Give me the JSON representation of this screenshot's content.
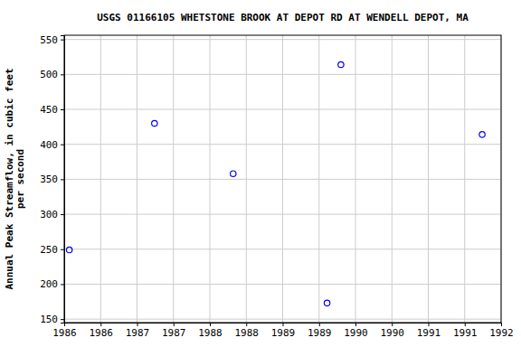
{
  "chart_data": {
    "type": "scatter",
    "title": "USGS 01166105 WHETSTONE BROOK AT DEPOT RD AT WENDELL DEPOT, MA",
    "y_label": [
      "Annual Peak Streamflow, in cubic feet",
      "per second"
    ],
    "x": [
      1986.07,
      1987.24,
      1988.32,
      1989.61,
      1989.8,
      1991.74
    ],
    "values": [
      249,
      430,
      358,
      173,
      514,
      414
    ],
    "color": "#0000ee",
    "marker": "circle-open",
    "xlim": [
      1986,
      1992
    ],
    "xticks": [
      {
        "value": 1986,
        "label": "1986"
      },
      {
        "value": 1986.5,
        "label": "1986"
      },
      {
        "value": 1987,
        "label": "1987"
      },
      {
        "value": 1987.5,
        "label": "1987"
      },
      {
        "value": 1988,
        "label": "1988"
      },
      {
        "value": 1988.5,
        "label": "1988"
      },
      {
        "value": 1989,
        "label": "1989"
      },
      {
        "value": 1989.5,
        "label": "1989"
      },
      {
        "value": 1990,
        "label": "1990"
      },
      {
        "value": 1990.5,
        "label": "1990"
      },
      {
        "value": 1991,
        "label": "1991"
      },
      {
        "value": 1991.5,
        "label": "1991"
      },
      {
        "value": 1992,
        "label": "1992"
      }
    ],
    "ylim": [
      145,
      556
    ],
    "yticks": [
      150,
      200,
      250,
      300,
      350,
      400,
      450,
      500,
      550
    ],
    "grid": true
  }
}
